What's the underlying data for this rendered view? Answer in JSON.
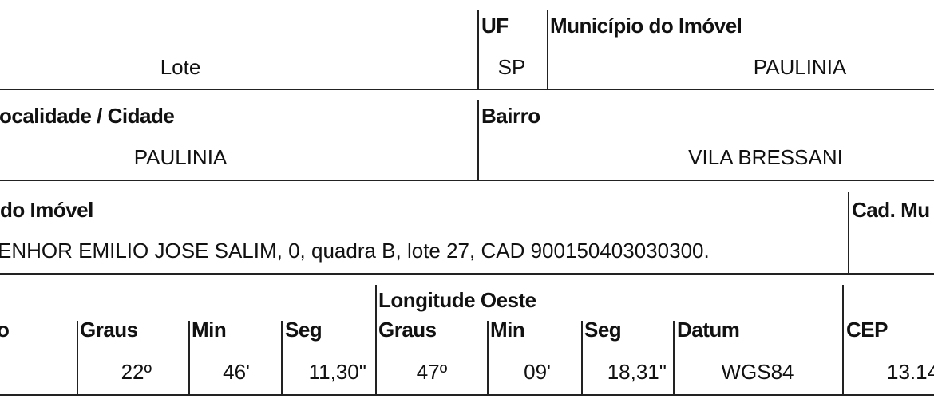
{
  "row1": {
    "value_left": "Lote",
    "uf_label": "UF",
    "uf_value": "SP",
    "municipio_label": "Município do Imóvel",
    "municipio_value": "PAULINIA"
  },
  "row2": {
    "localidade_label": "ocalidade / Cidade",
    "localidade_value": "PAULINIA",
    "bairro_label": "Bairro",
    "bairro_value": "VILA BRESSANI"
  },
  "row3": {
    "endereco_label": "do Imóvel",
    "endereco_value": "ENHOR EMILIO JOSE SALIM, 0, quadra B, lote 27, CAD 900150403030300.",
    "cad_label": "Cad. Mu"
  },
  "row4": {
    "first_label": "o",
    "lat": {
      "graus_label": "Graus",
      "graus": "22º",
      "min_label": "Min",
      "min": "46'",
      "seg_label": "Seg",
      "seg": "11,30\""
    },
    "longitude_label": "Longitude Oeste",
    "lon": {
      "graus_label": "Graus",
      "graus": "47º",
      "min_label": "Min",
      "min": "09'",
      "seg_label": "Seg",
      "seg": "18,31\""
    },
    "datum_label": "Datum",
    "datum": "WGS84",
    "cep_label": "CEP",
    "cep": "13.14"
  }
}
